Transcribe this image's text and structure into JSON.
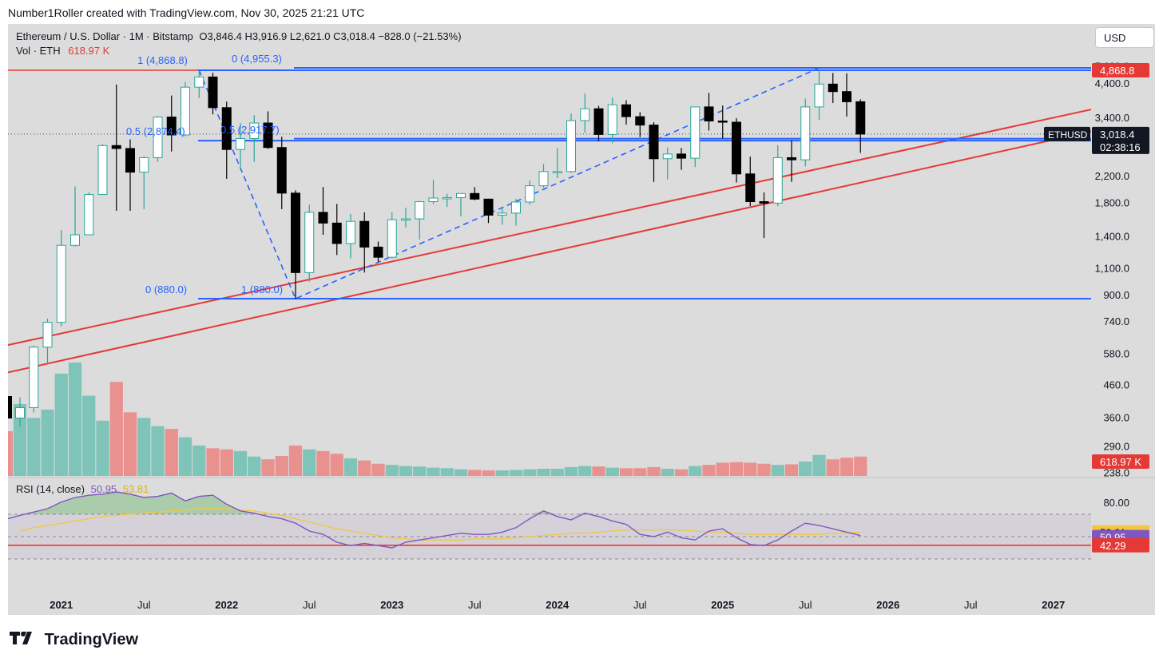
{
  "header": {
    "credit": "Number1Roller created with TradingView.com, Nov 30, 2025 21:21 UTC"
  },
  "toolbar": {
    "currency_button": "USD"
  },
  "legend": {
    "title": "Ethereum / U.S. Dollar · 1M · Bitstamp",
    "ohlc": "O3,846.4  H3,916.9  L2,621.0  C3,018.4  −828.0 (−21.53%)",
    "vol_label": "Vol · ETH",
    "vol_value": "618.97 K",
    "rsi_label": "RSI (14, close)",
    "rsi_value": "50.95",
    "rsi_ma_value": "53.81"
  },
  "footer": {
    "brand": "TradingView"
  },
  "colors": {
    "up_fill": "#ffffff",
    "up_border": "#26a69a",
    "down": "#000000",
    "vol_up": "#7fc4b9",
    "vol_down": "#e8918f",
    "level": "#2962ff",
    "trend": "#e53935",
    "rsi": "#7e57c2",
    "rsi_ma": "#f5c542"
  },
  "chart_data": [
    {
      "type": "candlestick",
      "symbol": "ETHUSD",
      "exchange": "Bitstamp",
      "interval": "1M",
      "y_scale": "log",
      "ylim": [
        238,
        6000
      ],
      "x_range": [
        "2020-09",
        "2027-04"
      ],
      "x_ticks": [
        "2021",
        "Jul",
        "2022",
        "Jul",
        "2023",
        "Jul",
        "2024",
        "Jul",
        "2025",
        "Jul",
        "2026",
        "Jul",
        "2027"
      ],
      "y_ticks": [
        "5,000.0",
        "4,400.0",
        "3,400.0",
        "2,200.0",
        "1,800.0",
        "1,400.0",
        "1,100.0",
        "900.0",
        "740.0",
        "580.0",
        "460.0",
        "360.0",
        "290.0",
        "238.0"
      ],
      "price_label": "3,018.4",
      "countdown": "02:38:16",
      "symbol_tag": "ETHUSD",
      "level_tag": "4,868.8",
      "candles": [
        {
          "t": "2020-10",
          "o": 360,
          "h": 420,
          "l": 338,
          "c": 389
        },
        {
          "t": "2020-11",
          "o": 389,
          "h": 620,
          "l": 375,
          "c": 612
        },
        {
          "t": "2020-12",
          "o": 612,
          "h": 757,
          "l": 540,
          "c": 737
        },
        {
          "t": "2021-01",
          "o": 737,
          "h": 1470,
          "l": 715,
          "c": 1312
        },
        {
          "t": "2021-02",
          "o": 1312,
          "h": 2040,
          "l": 1300,
          "c": 1420
        },
        {
          "t": "2021-03",
          "o": 1420,
          "h": 1950,
          "l": 1420,
          "c": 1920
        },
        {
          "t": "2021-04",
          "o": 1920,
          "h": 2800,
          "l": 1920,
          "c": 2770
        },
        {
          "t": "2021-05",
          "o": 2770,
          "h": 4380,
          "l": 1700,
          "c": 2710
        },
        {
          "t": "2021-06",
          "o": 2710,
          "h": 2900,
          "l": 1700,
          "c": 2270
        },
        {
          "t": "2021-07",
          "o": 2270,
          "h": 2560,
          "l": 1720,
          "c": 2530
        },
        {
          "t": "2021-08",
          "o": 2530,
          "h": 3460,
          "l": 2450,
          "c": 3430
        },
        {
          "t": "2021-09",
          "o": 3430,
          "h": 4030,
          "l": 2650,
          "c": 3000
        },
        {
          "t": "2021-10",
          "o": 3000,
          "h": 4460,
          "l": 2970,
          "c": 4290
        },
        {
          "t": "2021-11",
          "o": 4290,
          "h": 4868.8,
          "l": 3950,
          "c": 4630
        },
        {
          "t": "2021-12",
          "o": 4630,
          "h": 4780,
          "l": 3500,
          "c": 3680
        },
        {
          "t": "2022-01",
          "o": 3680,
          "h": 3850,
          "l": 2160,
          "c": 2690
        },
        {
          "t": "2022-02",
          "o": 2690,
          "h": 3280,
          "l": 2320,
          "c": 2920
        },
        {
          "t": "2022-03",
          "o": 2920,
          "h": 3480,
          "l": 2450,
          "c": 3280
        },
        {
          "t": "2022-04",
          "o": 3280,
          "h": 3580,
          "l": 2700,
          "c": 2730
        },
        {
          "t": "2022-05",
          "o": 2730,
          "h": 2960,
          "l": 1720,
          "c": 1940
        },
        {
          "t": "2022-06",
          "o": 1940,
          "h": 1980,
          "l": 880,
          "c": 1070
        },
        {
          "t": "2022-07",
          "o": 1070,
          "h": 1780,
          "l": 1000,
          "c": 1680
        },
        {
          "t": "2022-08",
          "o": 1680,
          "h": 2030,
          "l": 1420,
          "c": 1550
        },
        {
          "t": "2022-09",
          "o": 1550,
          "h": 1790,
          "l": 1220,
          "c": 1330
        },
        {
          "t": "2022-10",
          "o": 1330,
          "h": 1660,
          "l": 1190,
          "c": 1570
        },
        {
          "t": "2022-11",
          "o": 1570,
          "h": 1680,
          "l": 1070,
          "c": 1295
        },
        {
          "t": "2022-12",
          "o": 1295,
          "h": 1350,
          "l": 1160,
          "c": 1200
        },
        {
          "t": "2023-01",
          "o": 1200,
          "h": 1680,
          "l": 1190,
          "c": 1590
        },
        {
          "t": "2023-02",
          "o": 1590,
          "h": 1740,
          "l": 1500,
          "c": 1600
        },
        {
          "t": "2023-03",
          "o": 1600,
          "h": 1830,
          "l": 1370,
          "c": 1820
        },
        {
          "t": "2023-04",
          "o": 1820,
          "h": 2140,
          "l": 1790,
          "c": 1870
        },
        {
          "t": "2023-05",
          "o": 1870,
          "h": 1930,
          "l": 1750,
          "c": 1875
        },
        {
          "t": "2023-06",
          "o": 1875,
          "h": 1930,
          "l": 1630,
          "c": 1935
        },
        {
          "t": "2023-07",
          "o": 1935,
          "h": 2030,
          "l": 1840,
          "c": 1855
        },
        {
          "t": "2023-08",
          "o": 1855,
          "h": 1860,
          "l": 1550,
          "c": 1645
        },
        {
          "t": "2023-09",
          "o": 1645,
          "h": 1750,
          "l": 1530,
          "c": 1670
        },
        {
          "t": "2023-10",
          "o": 1670,
          "h": 1860,
          "l": 1520,
          "c": 1815
        },
        {
          "t": "2023-11",
          "o": 1815,
          "h": 2130,
          "l": 1780,
          "c": 2050
        },
        {
          "t": "2023-12",
          "o": 2050,
          "h": 2410,
          "l": 2020,
          "c": 2280
        },
        {
          "t": "2024-01",
          "o": 2280,
          "h": 2720,
          "l": 2170,
          "c": 2280
        },
        {
          "t": "2024-02",
          "o": 2280,
          "h": 3520,
          "l": 2260,
          "c": 3340
        },
        {
          "t": "2024-03",
          "o": 3340,
          "h": 4090,
          "l": 3050,
          "c": 3650
        },
        {
          "t": "2024-04",
          "o": 3650,
          "h": 3730,
          "l": 2860,
          "c": 3010
        },
        {
          "t": "2024-05",
          "o": 3010,
          "h": 3970,
          "l": 2820,
          "c": 3760
        },
        {
          "t": "2024-06",
          "o": 3760,
          "h": 3890,
          "l": 3240,
          "c": 3440
        },
        {
          "t": "2024-07",
          "o": 3440,
          "h": 3560,
          "l": 2950,
          "c": 3230
        },
        {
          "t": "2024-08",
          "o": 3230,
          "h": 3300,
          "l": 2110,
          "c": 2510
        },
        {
          "t": "2024-09",
          "o": 2510,
          "h": 2730,
          "l": 2150,
          "c": 2600
        },
        {
          "t": "2024-10",
          "o": 2600,
          "h": 2720,
          "l": 2310,
          "c": 2520
        },
        {
          "t": "2024-11",
          "o": 2520,
          "h": 3690,
          "l": 2360,
          "c": 3700
        },
        {
          "t": "2024-12",
          "o": 3700,
          "h": 4110,
          "l": 3100,
          "c": 3330
        },
        {
          "t": "2025-01",
          "o": 3330,
          "h": 3740,
          "l": 2920,
          "c": 3300
        },
        {
          "t": "2025-02",
          "o": 3300,
          "h": 3400,
          "l": 2100,
          "c": 2240
        },
        {
          "t": "2025-03",
          "o": 2240,
          "h": 2550,
          "l": 1760,
          "c": 1820
        },
        {
          "t": "2025-04",
          "o": 1820,
          "h": 1950,
          "l": 1385,
          "c": 1800
        },
        {
          "t": "2025-05",
          "o": 1800,
          "h": 2780,
          "l": 1760,
          "c": 2530
        },
        {
          "t": "2025-06",
          "o": 2530,
          "h": 2880,
          "l": 2110,
          "c": 2490
        },
        {
          "t": "2025-07",
          "o": 2490,
          "h": 3940,
          "l": 2370,
          "c": 3700
        },
        {
          "t": "2025-08",
          "o": 3700,
          "h": 4955.3,
          "l": 3350,
          "c": 4390
        },
        {
          "t": "2025-09",
          "o": 4390,
          "h": 4770,
          "l": 3810,
          "c": 4150
        },
        {
          "t": "2025-10",
          "o": 4150,
          "h": 4760,
          "l": 3440,
          "c": 3846.4
        },
        {
          "t": "2025-11",
          "o": 3846.4,
          "h": 3916.9,
          "l": 2621.0,
          "c": 3018.4
        }
      ],
      "volume": {
        "label": "Vol · ETH",
        "last": "618.97 K",
        "values": [
          1.3,
          1.05,
          1.2,
          1.85,
          2.05,
          1.45,
          1.0,
          1.7,
          1.15,
          1.05,
          0.9,
          0.85,
          0.7,
          0.55,
          0.5,
          0.48,
          0.45,
          0.35,
          0.3,
          0.36,
          0.55,
          0.48,
          0.45,
          0.4,
          0.32,
          0.28,
          0.22,
          0.2,
          0.18,
          0.17,
          0.15,
          0.14,
          0.12,
          0.11,
          0.1,
          0.1,
          0.11,
          0.12,
          0.13,
          0.13,
          0.16,
          0.18,
          0.17,
          0.15,
          0.14,
          0.14,
          0.16,
          0.13,
          0.12,
          0.18,
          0.2,
          0.24,
          0.25,
          0.24,
          0.22,
          0.2,
          0.21,
          0.26,
          0.38,
          0.3,
          0.33,
          0.35
        ]
      },
      "horizontal_levels": [
        {
          "price": 4868.8,
          "color": "#e53935",
          "label": ""
        },
        {
          "price": 4955.3,
          "color": "#2962ff",
          "label": "0 (4,955.3)"
        },
        {
          "price": 4868.8,
          "color": "#2962ff",
          "label": "1 (4,868.8)"
        },
        {
          "price": 2917.7,
          "color": "#2962ff",
          "label": "0.5 (2,917.7)"
        },
        {
          "price": 2874.4,
          "color": "#2962ff",
          "label": "0.5 (2,874.4)"
        },
        {
          "price": 880.0,
          "color": "#2962ff",
          "label": "0 (880.0)"
        },
        {
          "price": 880.0,
          "color": "#2962ff",
          "label": "1 (880.0)"
        }
      ],
      "trendlines": [
        {
          "from": {
            "t": "2020-09",
            "p": 620
          },
          "to": {
            "t": "2027-04",
            "p": 3650
          },
          "color": "#e53935"
        },
        {
          "from": {
            "t": "2020-09",
            "p": 505
          },
          "to": {
            "t": "2027-04",
            "p": 3100
          },
          "color": "#e53935"
        }
      ],
      "fib_path": [
        {
          "t": "2021-11",
          "p": 4868.8
        },
        {
          "t": "2022-06",
          "p": 880.0
        },
        {
          "t": "2025-08",
          "p": 4955.3
        }
      ]
    },
    {
      "type": "line",
      "title": "RSI (14, close)",
      "ylim": [
        0,
        100
      ],
      "y_ticks": [
        "80.00"
      ],
      "bands": [
        70,
        50,
        30
      ],
      "level_line": 42.29,
      "labels": {
        "rsi": "50.95",
        "ma": "53.81",
        "level": "42.29"
      },
      "rsi": [
        69,
        72,
        75,
        81,
        85,
        87,
        88,
        90,
        88,
        85,
        86,
        89,
        82,
        86,
        87,
        79,
        73,
        71,
        68,
        66,
        62,
        55,
        52,
        45,
        42,
        44,
        42,
        40,
        45,
        47,
        49,
        51,
        53,
        52,
        52,
        54,
        58,
        66,
        73,
        68,
        65,
        71,
        68,
        64,
        61,
        52,
        50,
        54,
        49,
        47,
        55,
        57,
        49,
        43,
        42,
        47,
        55,
        62,
        60,
        57,
        54,
        50.95
      ],
      "rsi_ma": [
        55,
        58,
        60,
        62,
        64,
        66,
        68,
        69,
        70,
        71,
        72,
        73,
        74,
        75,
        75,
        75,
        74,
        73,
        71,
        69,
        66,
        63,
        60,
        57,
        55,
        53,
        51,
        49,
        48,
        47,
        47,
        47,
        47,
        48,
        48,
        48,
        49,
        50,
        51,
        52,
        53,
        53,
        54,
        55,
        56,
        56,
        56,
        56,
        56,
        55,
        54,
        54,
        53,
        52,
        52,
        52,
        52,
        52,
        52,
        53,
        53.5,
        53.81
      ]
    }
  ]
}
